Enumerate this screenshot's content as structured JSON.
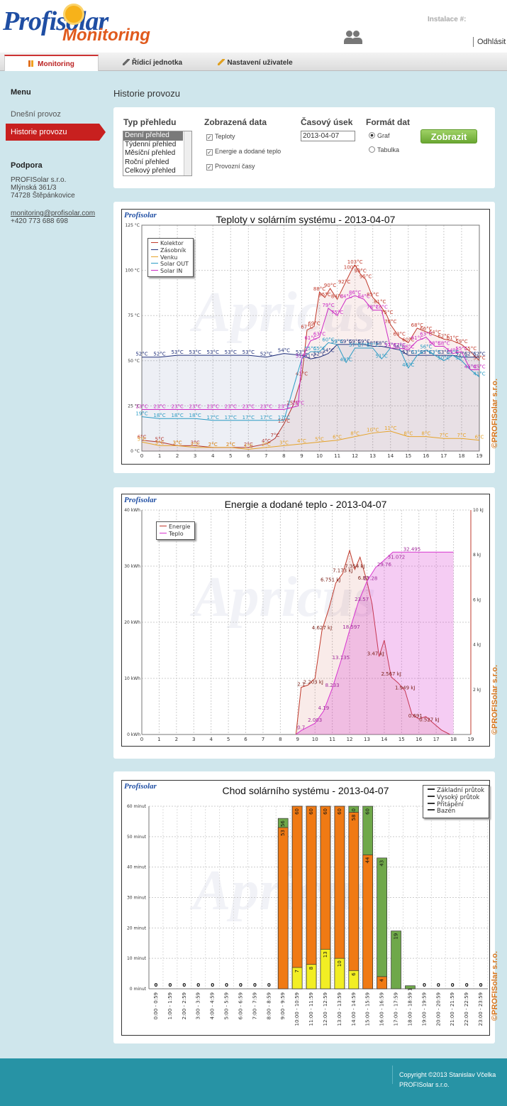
{
  "header": {
    "logo_top": "Profisolar",
    "logo_bottom": "Monitoring",
    "installation_label": "Instalace #:",
    "installation_value": "",
    "logout": "Odhlásit"
  },
  "tabs": [
    {
      "label": "Monitoring"
    },
    {
      "label": "Řídicí jednotka"
    },
    {
      "label": "Nastavení uživatele"
    }
  ],
  "sidebar": {
    "menu_title": "Menu",
    "items": [
      {
        "label": "Dnešní provoz"
      },
      {
        "label": "Historie provozu"
      }
    ],
    "support_title": "Podpora",
    "company": "PROFISolar s.r.o.",
    "street": "Mlýnská 361/3",
    "city": "74728 Štěpánkovice",
    "email": "monitoring@profisolar.com",
    "phone": "+420 773 688 698"
  },
  "page_title": "Historie provozu",
  "filters": {
    "type_title": "Typ přehledu",
    "types": [
      "Denní přehled",
      "Týdenní přehled",
      "Měsíční přehled",
      "Roční přehled",
      "Celkový přehled"
    ],
    "data_title": "Zobrazená data",
    "data_options": [
      {
        "label": "Teploty",
        "checked": true
      },
      {
        "label": "Energie a dodané teplo",
        "checked": true
      },
      {
        "label": "Provozní časy",
        "checked": true
      }
    ],
    "period_title": "Časový úsek",
    "date": "2013-04-07",
    "format_title": "Formát dat",
    "formats": [
      {
        "label": "Graf",
        "selected": true
      },
      {
        "label": "Tabulka",
        "selected": false
      }
    ],
    "submit": "Zobrazit"
  },
  "brand": {
    "logo": "Profisolar",
    "watermark": "Apricus",
    "copyright": "©PROFISolar s.r.o."
  },
  "chart_data": [
    {
      "type": "line",
      "title": "Teploty v solárním systému - 2013-04-07",
      "x_range": [
        0,
        19
      ],
      "ylim": [
        0,
        125
      ],
      "y_unit": "°C",
      "legend": "top-left",
      "grid": true,
      "y_ticks": [
        "125 °C",
        "100 °C",
        "75 °C",
        "50 °C",
        "25 °C",
        "0 °C"
      ],
      "series": [
        {
          "name": "Kolektor",
          "color": "#c0392b",
          "x": [
            0,
            1,
            2,
            3,
            4,
            5,
            6,
            7,
            7.5,
            8,
            8.5,
            9,
            9.3,
            9.7,
            10,
            10.3,
            10.6,
            11,
            11.4,
            11.8,
            12,
            12.3,
            12.6,
            13,
            13.4,
            13.8,
            14,
            14.5,
            15,
            15.5,
            16,
            16.5,
            17,
            17.5,
            18,
            18.5,
            19
          ],
          "y": [
            6,
            5,
            3,
            3,
            2,
            2,
            2,
            4,
            7,
            15,
            25,
            41,
            67,
            69,
            88,
            85,
            90,
            84,
            92,
            100,
            103,
            98,
            95,
            85,
            81,
            75,
            70,
            63,
            60,
            68,
            66,
            64,
            62,
            61,
            59,
            55,
            50
          ]
        },
        {
          "name": "Zásobník",
          "color": "#1f2f7a",
          "x": [
            0,
            1,
            2,
            3,
            4,
            5,
            6,
            7,
            8,
            9,
            9.5,
            10,
            10.5,
            11,
            11.5,
            12,
            12.5,
            13,
            13.5,
            14,
            14.5,
            15,
            15.5,
            16,
            16.5,
            17,
            17.5,
            18,
            18.5,
            19
          ],
          "y": [
            52,
            52,
            53,
            53,
            53,
            53,
            53,
            52,
            54,
            53,
            51,
            52,
            54,
            59,
            59,
            59,
            59,
            58,
            58,
            57,
            56,
            53,
            53,
            53,
            53,
            53,
            53,
            52,
            52,
            52
          ]
        },
        {
          "name": "Venku",
          "color": "#e5a32b",
          "x": [
            0,
            1,
            2,
            3,
            4,
            5,
            6,
            7,
            8,
            9,
            10,
            11,
            12,
            13,
            14,
            15,
            16,
            17,
            18,
            19
          ],
          "y": [
            5,
            3,
            3,
            2,
            2,
            2,
            1,
            2,
            3,
            4,
            5,
            6,
            8,
            10,
            11,
            8,
            8,
            7,
            7,
            6
          ]
        },
        {
          "name": "Solar OUT",
          "color": "#2a9bc4",
          "x": [
            0,
            1,
            2,
            3,
            4,
            5,
            6,
            7,
            8,
            9,
            9.5,
            10,
            10.5,
            11,
            11.5,
            12,
            12.5,
            13,
            13.5,
            14,
            14.5,
            15,
            15.5,
            16,
            16.5,
            17,
            17.5,
            18,
            18.5,
            19
          ],
          "y": [
            19,
            18,
            18,
            18,
            17,
            17,
            17,
            17,
            17,
            51,
            55,
            55,
            60,
            59,
            49,
            57,
            57,
            57,
            51,
            57,
            57,
            46,
            53,
            56,
            53,
            50,
            53,
            50,
            45,
            41
          ]
        },
        {
          "name": "Solar IN",
          "color": "#cc2ac4",
          "x": [
            0,
            1,
            2,
            3,
            4,
            5,
            6,
            7,
            8,
            8.8,
            9,
            9.5,
            10,
            10.5,
            11,
            11.5,
            12,
            12.5,
            13,
            13.5,
            14,
            14.5,
            15,
            15.5,
            16,
            16.5,
            17,
            17.5,
            18,
            18.5,
            19
          ],
          "y": [
            23,
            23,
            23,
            23,
            23,
            23,
            23,
            23,
            23,
            25,
            51,
            61,
            63,
            79,
            75,
            84,
            86,
            84,
            78,
            78,
            57,
            57,
            56,
            61,
            63,
            58,
            58,
            54,
            55,
            45,
            45
          ]
        }
      ]
    },
    {
      "type": "line",
      "title": "Energie a dodané teplo - 2013-04-07",
      "x_range": [
        0,
        19
      ],
      "legend": "top-left",
      "grid": true,
      "y_left_unit": "kWh",
      "y_right_unit": "kJ",
      "y_ticks": [
        "40 kWh",
        "30 kWh",
        "20 kWh",
        "10 kWh",
        "0 kWh"
      ],
      "y2_ticks": [
        "10 kJ",
        "8 kJ",
        "6 kJ",
        "4 kJ",
        "2 kJ"
      ],
      "series": [
        {
          "name": "Energie",
          "color": "#c0392b",
          "axis": "right",
          "x": [
            8.9,
            9.2,
            9.6,
            10,
            10.4,
            10.8,
            11.2,
            11.6,
            12,
            12.3,
            12.6,
            13,
            13.3,
            13.7,
            14,
            14.4,
            14.8,
            15.2,
            15.6,
            16,
            16.4,
            16.8,
            17.3,
            17.8
          ],
          "y": [
            0,
            2.1,
            2.203,
            2.5,
            4.627,
            5.6,
            6.751,
            7.173,
            8.2,
            7.354,
            7.9,
            6.83,
            5.8,
            3.47,
            4.2,
            2.567,
            2.3,
            1.949,
            0.9,
            0.691,
            0.8,
            0.527,
            0.2,
            0
          ]
        },
        {
          "name": "Teplo",
          "color": "#d735cf",
          "axis": "left",
          "x": [
            8.9,
            9.2,
            10,
            10.5,
            11,
            11.5,
            12,
            12.5,
            13,
            13.5,
            14,
            14.5,
            15,
            15.5,
            16,
            16.5,
            17,
            17.5,
            18
          ],
          "y": [
            0,
            0.7,
            2.003,
            4.19,
            8.233,
            13.135,
            18.597,
            23.57,
            27.28,
            29.76,
            31.072,
            32.495,
            32.495,
            32.495,
            32.495,
            32.495,
            32.495,
            32.495,
            32.495
          ]
        }
      ],
      "annotations": [
        "2.1",
        "2.203 kJ",
        "4.627 kJ",
        "6.751 kJ",
        "7.173 kJ",
        "7.354 kJ",
        "6.83",
        "3.47 kJ",
        "2.567 kJ",
        "1.949 kJ",
        "0.691",
        "0.527 kJ",
        "0.7",
        "2.003",
        "4.19",
        "8.233",
        "13.135",
        "18.597",
        "23.57",
        "27.28",
        "29.76",
        "31.072",
        "32.495"
      ]
    },
    {
      "type": "bar",
      "title": "Chod solárního systému - 2013-04-07",
      "ylim": [
        0,
        60
      ],
      "y_unit": "minut",
      "legend": "top-right",
      "grid": true,
      "y_ticks": [
        "60 minut",
        "50 minut",
        "40 minut",
        "30 minut",
        "20 minut",
        "10 minut",
        "0 minut"
      ],
      "categories": [
        "0:00 - 0:59",
        "1:00 - 1:59",
        "2:00 - 2:59",
        "3:00 - 3:59",
        "4:00 - 4:59",
        "5:00 - 5:59",
        "6:00 - 6:59",
        "7:00 - 7:59",
        "8:00 - 8:59",
        "9:00 - 9:59",
        "10:00 - 10:59",
        "11:00 - 11:59",
        "12:00 - 12:59",
        "13:00 - 13:59",
        "14:00 - 14:59",
        "15:00 - 15:59",
        "16:00 - 16:59",
        "17:00 - 17:59",
        "18:00 - 18:59",
        "19:00 - 19:59",
        "20:00 - 20:59",
        "21:00 - 21:59",
        "22:00 - 22:59",
        "23:00 - 23:59"
      ],
      "series": [
        {
          "name": "Základní průtok",
          "color": "#6fa84a",
          "values": [
            0,
            0,
            0,
            0,
            0,
            0,
            0,
            0,
            0,
            56,
            60,
            60,
            60,
            60,
            60,
            60,
            43,
            19,
            1,
            0,
            0,
            0,
            0,
            0
          ]
        },
        {
          "name": "Vysoký průtok",
          "color": "#f07a14",
          "values": [
            0,
            0,
            0,
            0,
            0,
            0,
            0,
            0,
            0,
            53,
            60,
            60,
            60,
            60,
            58,
            44,
            4,
            0,
            0,
            0,
            0,
            0,
            0,
            0
          ]
        },
        {
          "name": "Přitápění",
          "color": "#f2ee24",
          "values": [
            0,
            0,
            0,
            0,
            0,
            0,
            0,
            0,
            0,
            0,
            7,
            8,
            13,
            10,
            6,
            0,
            0,
            0,
            0,
            0,
            0,
            0,
            0,
            0
          ]
        },
        {
          "name": "Bazén",
          "color": "#38d6e0",
          "values": [
            0,
            0,
            0,
            0,
            0,
            0,
            0,
            0,
            0,
            0,
            0,
            0,
            0,
            0,
            0,
            0,
            0,
            0,
            0,
            0,
            0,
            0,
            0,
            0
          ]
        }
      ]
    }
  ],
  "footer": {
    "copyright": "Copyright ©2013 Stanislav Včelka",
    "company": "PROFISolar s.r.o."
  }
}
